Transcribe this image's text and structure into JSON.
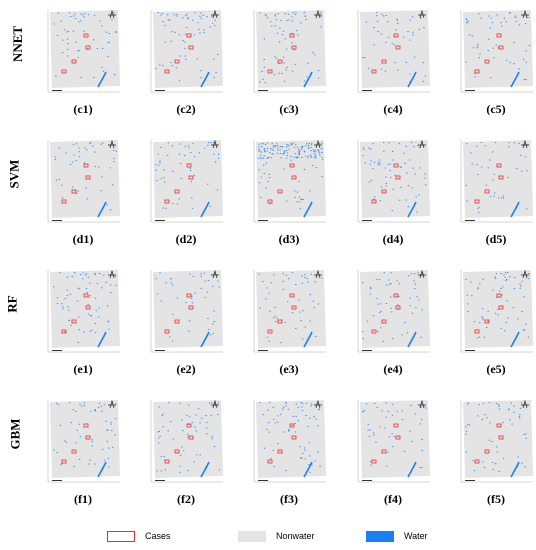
{
  "rows": [
    {
      "label": "NNET",
      "captions": [
        "(c1)",
        "(c2)",
        "(c3)",
        "(c4)",
        "(c5)"
      ]
    },
    {
      "label": "SVM",
      "captions": [
        "(d1)",
        "(d2)",
        "(d3)",
        "(d4)",
        "(d5)"
      ]
    },
    {
      "label": "RF",
      "captions": [
        "(e1)",
        "(e2)",
        "(e3)",
        "(e4)",
        "(e5)"
      ]
    },
    {
      "label": "GBM",
      "captions": [
        "(f1)",
        "(f2)",
        "(f3)",
        "(f4)",
        "(f5)"
      ]
    }
  ],
  "legend": [
    {
      "label": "Cases",
      "kind": "outline",
      "color": "#e03030"
    },
    {
      "label": "Nonwater",
      "kind": "fill",
      "color": "#e4e4e4"
    },
    {
      "label": "Water",
      "kind": "fill",
      "color": "#1a7ff0"
    }
  ],
  "colors": {
    "cases": "#e03030",
    "nonwater": "#e4e4e4",
    "water": "#1a7ff0"
  }
}
